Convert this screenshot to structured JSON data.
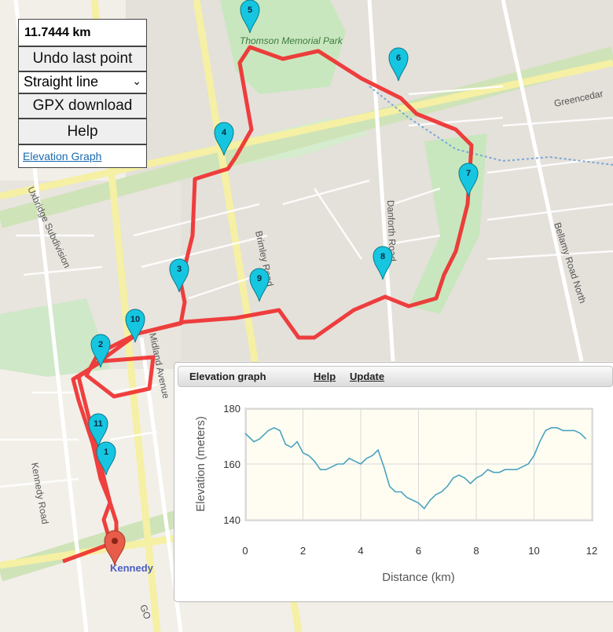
{
  "controls": {
    "distance": "11.7444 km",
    "undo_label": "Undo last point",
    "route_mode": "Straight line",
    "gpx_label": "GPX download",
    "help_label": "Help",
    "elevation_link": "Elevation Graph"
  },
  "map": {
    "street_labels": [
      "Kennedy Road",
      "Uxbridge Subdivision",
      "Brimley Road",
      "Midland Avenue",
      "Danforth Road",
      "Bellamy Road North",
      "Greencedar",
      "GO",
      "Kennedy",
      "Thomson Memorial Park"
    ],
    "markers": [
      "1",
      "2",
      "3",
      "4",
      "5",
      "6",
      "7",
      "8",
      "9",
      "10",
      "11"
    ],
    "route_color": "#ee2b2b",
    "marker_color": "#16c6e0",
    "end_marker_color": "#e85c4a"
  },
  "elevation_panel": {
    "title": "Elevation graph",
    "help_label": "Help",
    "update_label": "Update"
  },
  "chart_data": {
    "type": "line",
    "xlabel": "Distance (km)",
    "ylabel": "Elevation (meters)",
    "xlim": [
      0,
      12
    ],
    "ylim": [
      140,
      180
    ],
    "xticks": [
      0,
      2,
      4,
      6,
      8,
      10,
      12
    ],
    "yticks": [
      140,
      160,
      180
    ],
    "grid": true,
    "line_color": "#4aa3c0",
    "x": [
      0,
      0.1,
      0.3,
      0.5,
      0.8,
      1.0,
      1.2,
      1.4,
      1.6,
      1.8,
      2.0,
      2.2,
      2.4,
      2.6,
      2.8,
      3.0,
      3.2,
      3.4,
      3.6,
      3.8,
      4.0,
      4.2,
      4.4,
      4.6,
      4.8,
      5.0,
      5.2,
      5.4,
      5.6,
      5.8,
      6.0,
      6.2,
      6.4,
      6.6,
      6.8,
      7.0,
      7.2,
      7.4,
      7.6,
      7.8,
      8.0,
      8.2,
      8.4,
      8.6,
      8.8,
      9.0,
      9.2,
      9.4,
      9.6,
      9.8,
      10.0,
      10.2,
      10.4,
      10.6,
      10.8,
      11.0,
      11.2,
      11.4,
      11.6,
      11.8
    ],
    "y": [
      171,
      170,
      168,
      169,
      172,
      173,
      172,
      167,
      166,
      168,
      164,
      163,
      161,
      158,
      158,
      159,
      160,
      160,
      162,
      161,
      160,
      162,
      163,
      165,
      159,
      152,
      150,
      150,
      148,
      147,
      146,
      144,
      147,
      149,
      150,
      152,
      155,
      156,
      155,
      153,
      155,
      156,
      158,
      157,
      157,
      158,
      158,
      158,
      159,
      160,
      163,
      168,
      172,
      173,
      173,
      172,
      172,
      172,
      171,
      169
    ]
  }
}
